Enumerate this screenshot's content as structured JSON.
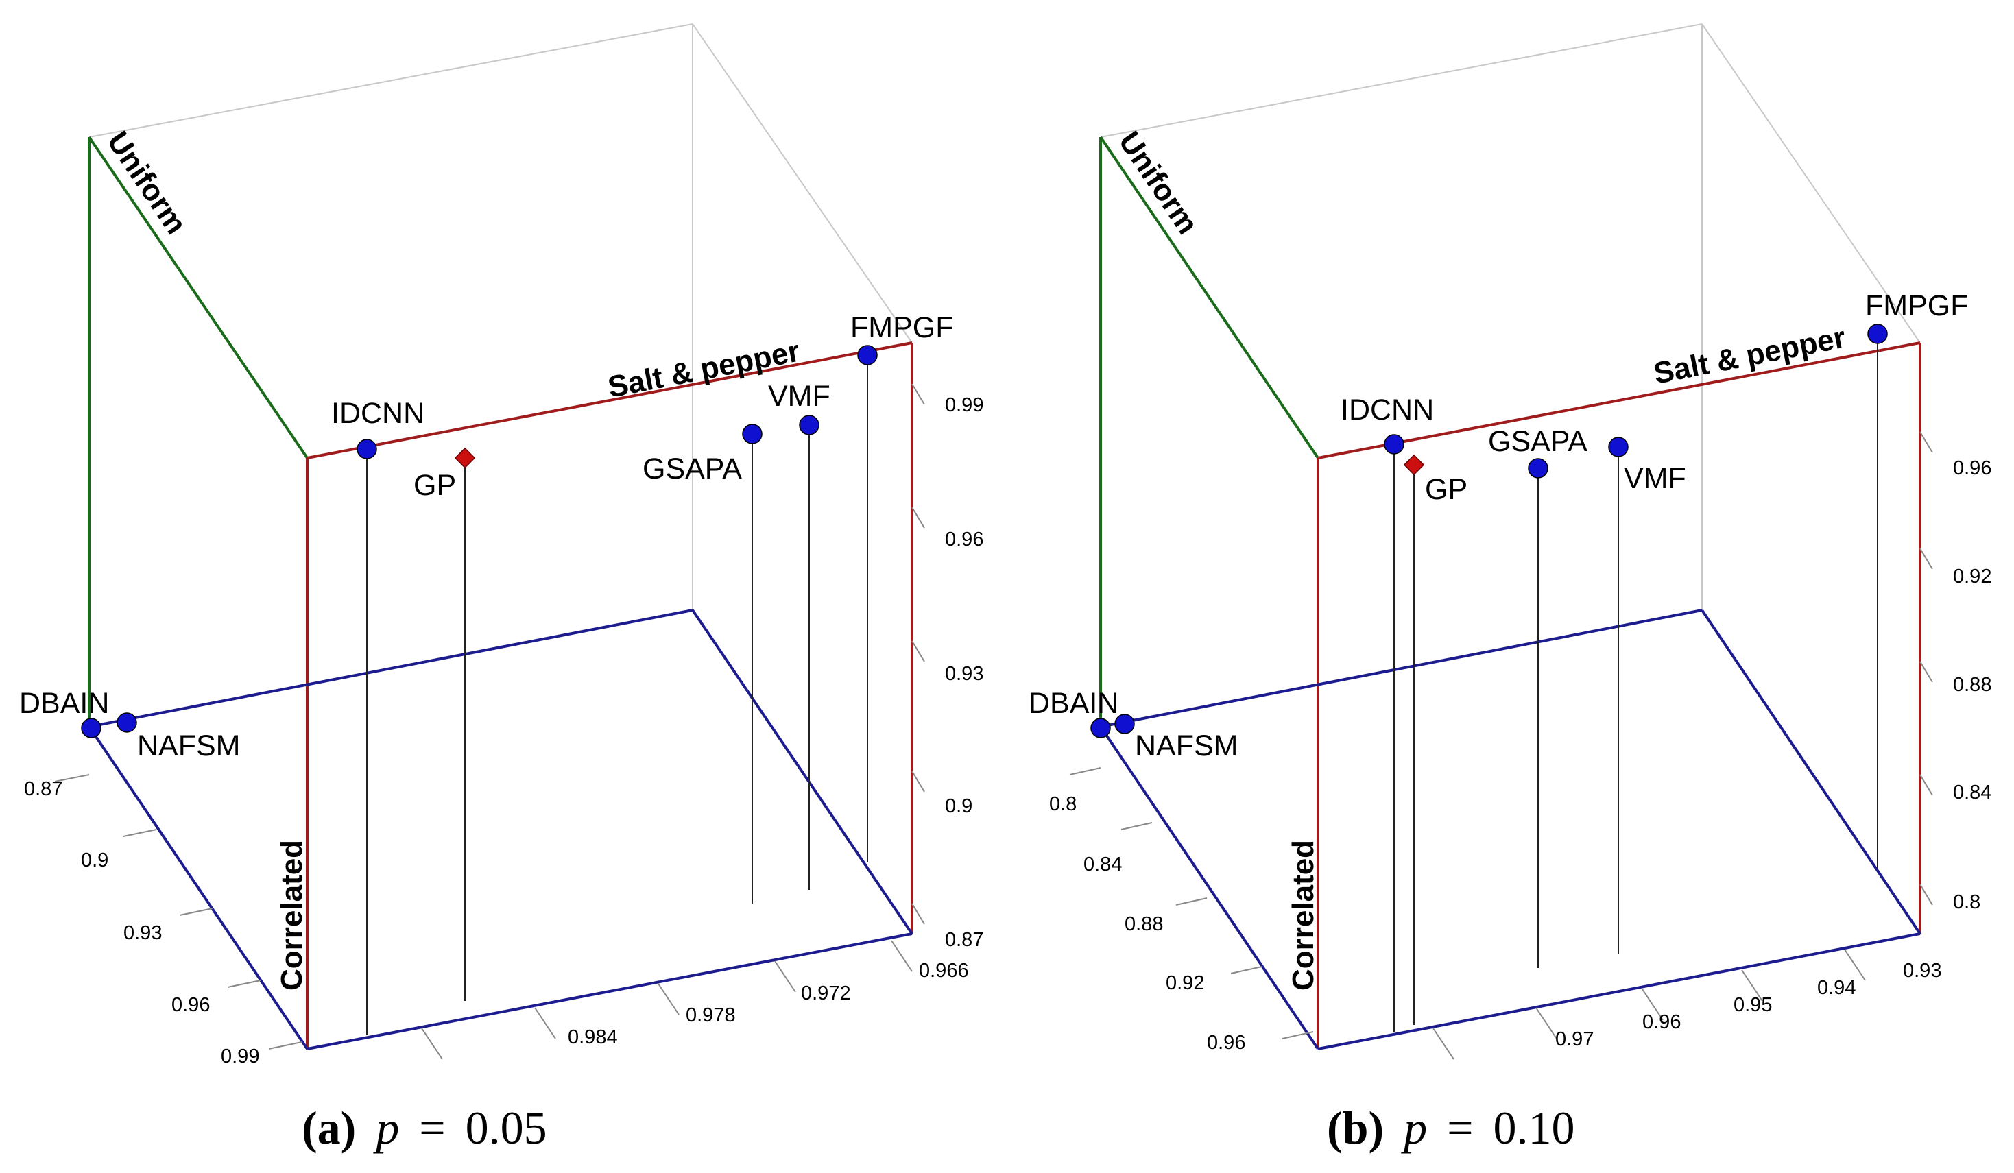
{
  "chart_data": [
    {
      "type": "scatter3d",
      "caption": {
        "letter": "(a)",
        "variable": "p",
        "equals": "=",
        "value": "0.05"
      },
      "axes": {
        "uniform": {
          "label": "Uniform",
          "color": "#1a6b1a"
        },
        "salt_pepper": {
          "label": "Salt & pepper",
          "color": "#a01c1c",
          "ticks": [
            "0.99",
            "0.96",
            "0.93",
            "0.9",
            "0.87"
          ]
        },
        "correlated": {
          "label": "Correlated",
          "color": "#1c1c8f",
          "ticks": [
            "0.87",
            "0.9",
            "0.93",
            "0.96",
            "0.99"
          ]
        },
        "third_axis": {
          "ticks": [
            "0.984",
            "0.978",
            "0.972",
            "0.966"
          ]
        }
      },
      "methods": [
        {
          "name": "DBAIN",
          "marker": "circle",
          "color": "#1010d0"
        },
        {
          "name": "NAFSM",
          "marker": "circle",
          "color": "#1010d0"
        },
        {
          "name": "IDCNN",
          "marker": "circle",
          "color": "#1010d0"
        },
        {
          "name": "GP",
          "marker": "diamond",
          "color": "#cc1010"
        },
        {
          "name": "GSAPA",
          "marker": "circle",
          "color": "#1010d0"
        },
        {
          "name": "VMF",
          "marker": "circle",
          "color": "#1010d0"
        },
        {
          "name": "FMPGF",
          "marker": "circle",
          "color": "#1010d0"
        }
      ]
    },
    {
      "type": "scatter3d",
      "caption": {
        "letter": "(b)",
        "variable": "p",
        "equals": "=",
        "value": "0.10"
      },
      "axes": {
        "uniform": {
          "label": "Uniform",
          "color": "#1a6b1a"
        },
        "salt_pepper": {
          "label": "Salt & pepper",
          "color": "#a01c1c",
          "ticks": [
            "0.96",
            "0.92",
            "0.88",
            "0.84",
            "0.8"
          ]
        },
        "correlated": {
          "label": "Correlated",
          "color": "#1c1c8f",
          "ticks": [
            "0.8",
            "0.84",
            "0.88",
            "0.92",
            "0.96"
          ]
        },
        "third_axis": {
          "ticks": [
            "0.97",
            "0.96",
            "0.95",
            "0.94",
            "0.93"
          ]
        }
      },
      "methods": [
        {
          "name": "DBAIN",
          "marker": "circle",
          "color": "#1010d0"
        },
        {
          "name": "NAFSM",
          "marker": "circle",
          "color": "#1010d0"
        },
        {
          "name": "IDCNN",
          "marker": "circle",
          "color": "#1010d0"
        },
        {
          "name": "GP",
          "marker": "diamond",
          "color": "#cc1010"
        },
        {
          "name": "GSAPA",
          "marker": "circle",
          "color": "#1010d0"
        },
        {
          "name": "VMF",
          "marker": "circle",
          "color": "#1010d0"
        },
        {
          "name": "FMPGF",
          "marker": "circle",
          "color": "#1010d0"
        }
      ]
    }
  ]
}
